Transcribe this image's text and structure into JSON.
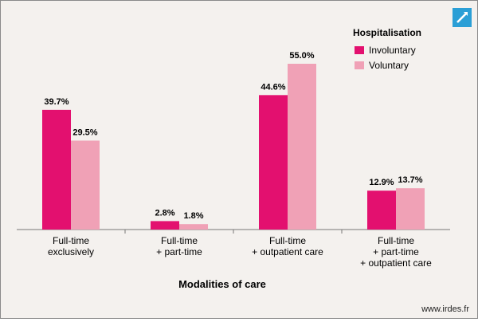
{
  "chart_data": {
    "type": "bar",
    "xlabel": "Modalities of care",
    "ylabel": "",
    "ylim": [
      0,
      60
    ],
    "grid": false,
    "legend_title": "Hospitalisation",
    "legend_position": "top-right",
    "categories": [
      [
        "Full-time",
        "exclusively"
      ],
      [
        "Full-time",
        "+ part-time"
      ],
      [
        "Full-time",
        "+ outpatient care"
      ],
      [
        "Full-time",
        "+ part-time",
        "+ outpatient care"
      ]
    ],
    "series": [
      {
        "name": "Involuntary",
        "color": "#e3106f",
        "values": [
          39.7,
          2.8,
          44.6,
          12.9
        ],
        "labels": [
          "39.7%",
          "2.8%",
          "44.6%",
          "12.9%"
        ]
      },
      {
        "name": "Voluntary",
        "color": "#f0a1b6",
        "values": [
          29.5,
          1.8,
          55.0,
          13.7
        ],
        "labels": [
          "29.5%",
          "1.8%",
          "55.0%",
          "13.7%"
        ]
      }
    ]
  },
  "footer": {
    "source": "www.irdes.fr"
  },
  "icons": {
    "expand": "expand-arrow-icon"
  }
}
